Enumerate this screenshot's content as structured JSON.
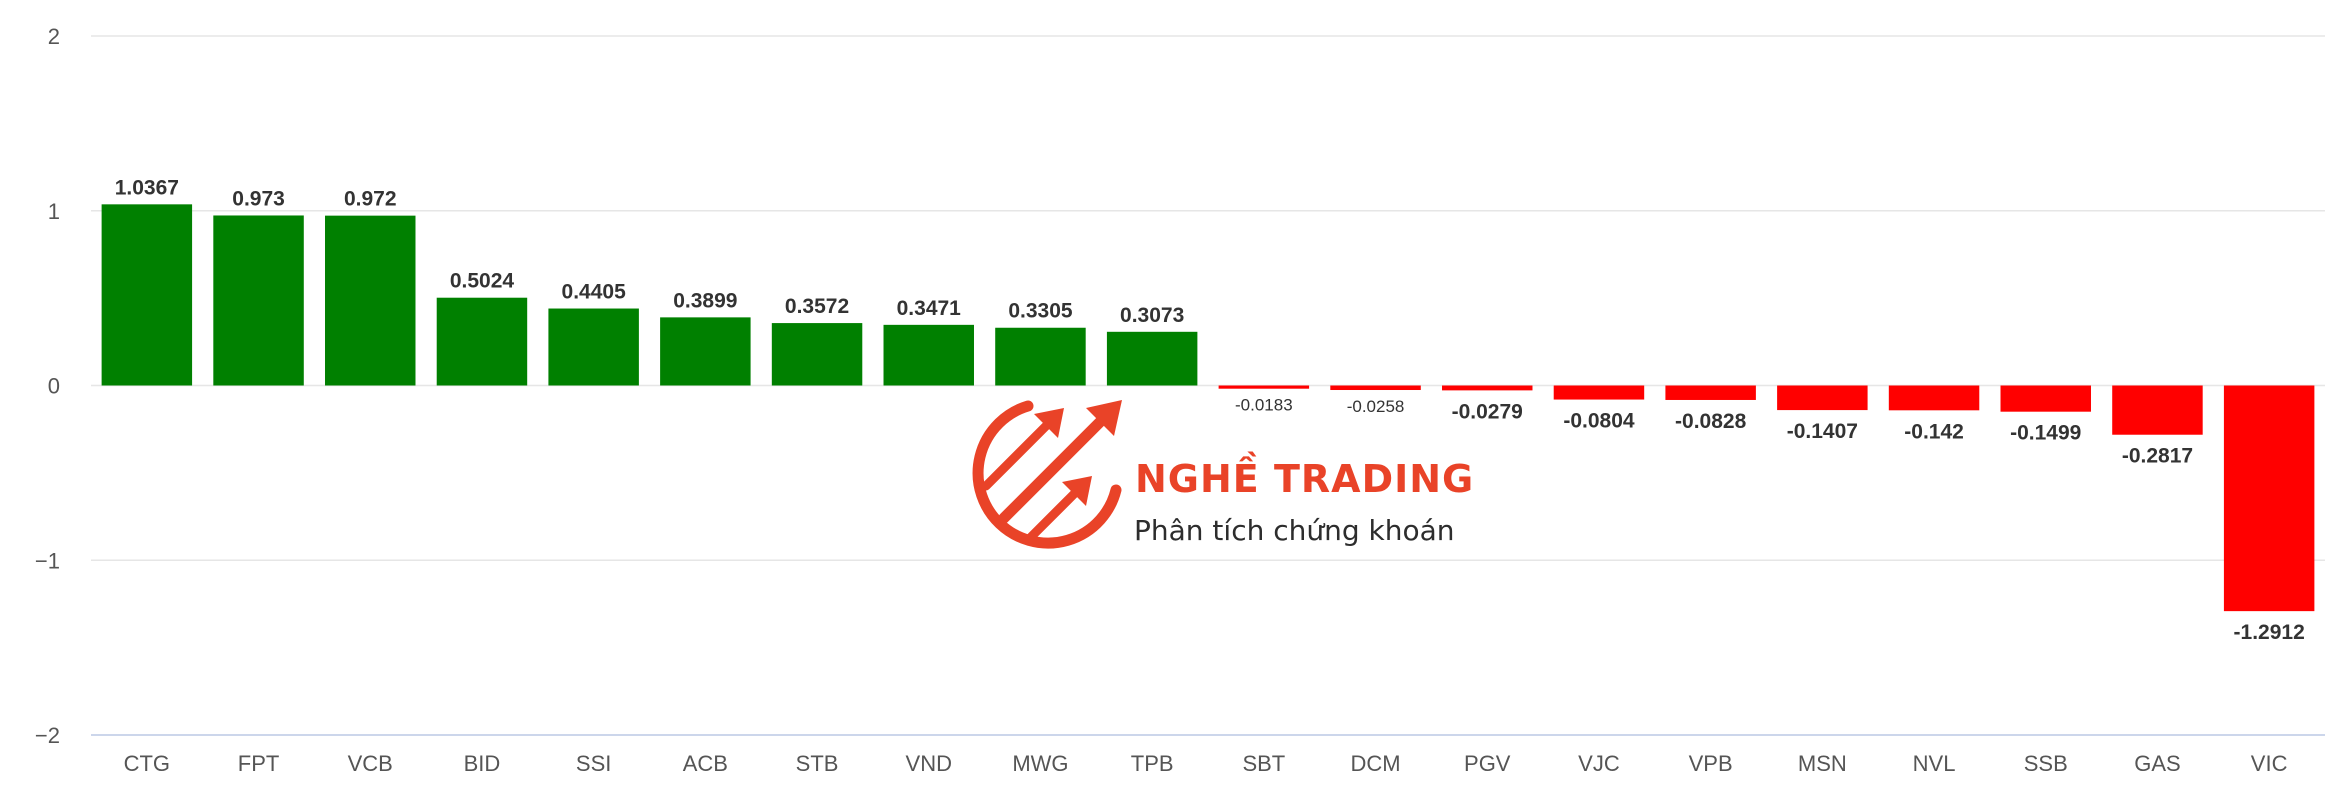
{
  "chart_data": {
    "type": "bar",
    "categories": [
      "CTG",
      "FPT",
      "VCB",
      "BID",
      "SSI",
      "ACB",
      "STB",
      "VND",
      "MWG",
      "TPB",
      "SBT",
      "DCM",
      "PGV",
      "VJC",
      "VPB",
      "MSN",
      "NVL",
      "SSB",
      "GAS",
      "VIC"
    ],
    "values": [
      1.0367,
      0.973,
      0.972,
      0.5024,
      0.4405,
      0.3899,
      0.3572,
      0.3471,
      0.3305,
      0.3073,
      -0.0183,
      -0.0258,
      -0.0279,
      -0.0804,
      -0.0828,
      -0.1407,
      -0.142,
      -0.1499,
      -0.2817,
      -1.2912
    ],
    "data_labels": [
      "1.0367",
      "0.973",
      "0.972",
      "0.5024",
      "0.4405",
      "0.3899",
      "0.3572",
      "0.3471",
      "0.3305",
      "0.3073",
      "-0.0183",
      "-0.0258",
      "-0.0279",
      "-0.0804",
      "-0.0828",
      "-0.1407",
      "-0.142",
      "-0.1499",
      "-0.2817",
      "-1.2912"
    ],
    "yticks": [
      2,
      1,
      0,
      -1,
      -2
    ],
    "ytick_labels": [
      "2",
      "1",
      "0",
      "−1",
      "−2"
    ],
    "ylim": [
      -2,
      2
    ],
    "title": "",
    "xlabel": "",
    "ylabel": "",
    "grid": true,
    "legend": "none",
    "colors": {
      "positive": "#008000",
      "negative": "#ff0000"
    }
  },
  "watermark": {
    "title": "NGHỀ TRADING",
    "subtitle": "Phân tích chứng khoán",
    "color": "#e8391d"
  }
}
